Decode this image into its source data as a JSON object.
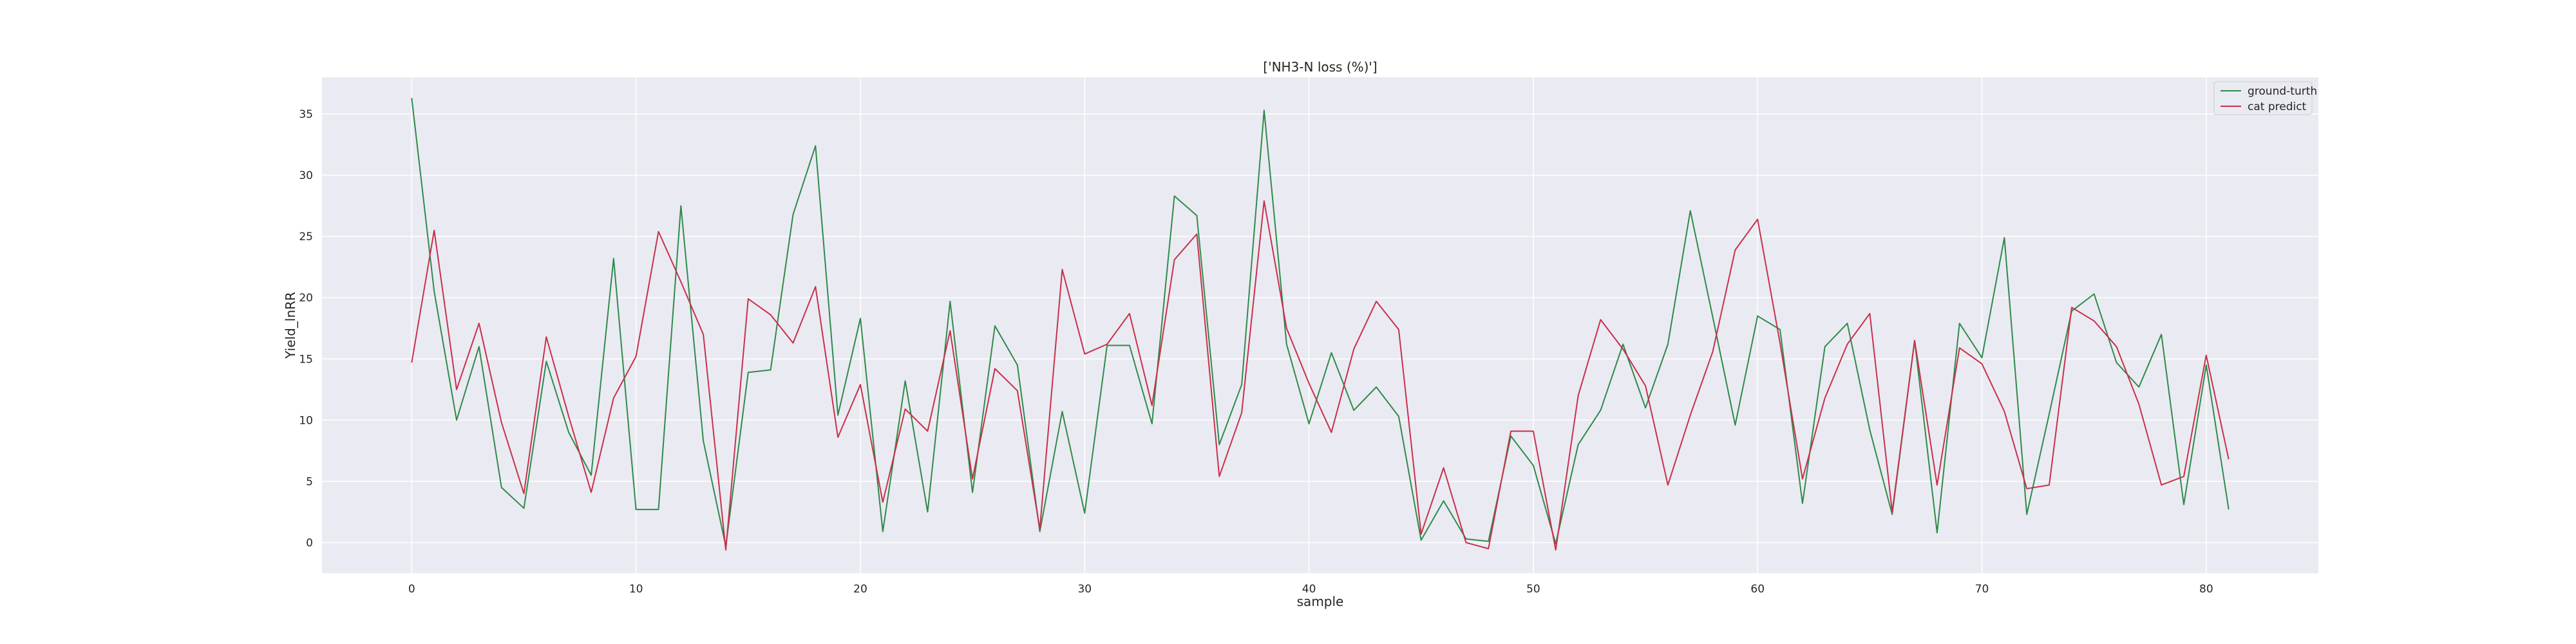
{
  "chart_data": {
    "type": "line",
    "title": "['NH3-N loss (%)']",
    "xlabel": "sample",
    "ylabel": "Yield_lnRR",
    "xlim": [
      -4,
      85
    ],
    "ylim": [
      -2.5,
      38
    ],
    "xticks": [
      0,
      10,
      20,
      30,
      40,
      50,
      60,
      70,
      80
    ],
    "yticks": [
      0,
      5,
      10,
      15,
      20,
      25,
      30,
      35
    ],
    "grid": true,
    "legend_position": "top-right",
    "x": [
      0,
      1,
      2,
      3,
      4,
      5,
      6,
      7,
      8,
      9,
      10,
      11,
      12,
      13,
      14,
      15,
      16,
      17,
      18,
      19,
      20,
      21,
      22,
      23,
      24,
      25,
      26,
      27,
      28,
      29,
      30,
      31,
      32,
      33,
      34,
      35,
      36,
      37,
      38,
      39,
      40,
      41,
      42,
      43,
      44,
      45,
      46,
      47,
      48,
      49,
      50,
      51,
      52,
      53,
      54,
      55,
      56,
      57,
      58,
      59,
      60,
      61,
      62,
      63,
      64,
      65,
      66,
      67,
      68,
      69,
      70,
      71,
      72,
      73,
      74,
      75,
      76,
      77,
      78,
      79,
      80,
      81
    ],
    "series": [
      {
        "name": "ground-turth",
        "color": "#2e8b4a",
        "values": [
          36.3,
          20.5,
          10.0,
          16.0,
          4.5,
          2.8,
          14.8,
          9.0,
          5.5,
          23.2,
          2.7,
          2.7,
          27.5,
          8.3,
          -0.3,
          13.9,
          14.1,
          26.8,
          32.4,
          10.4,
          18.3,
          0.9,
          13.2,
          2.5,
          19.7,
          4.1,
          17.7,
          14.5,
          0.9,
          10.7,
          2.4,
          16.1,
          16.1,
          9.7,
          28.3,
          26.7,
          8.0,
          12.9,
          35.3,
          16.2,
          9.7,
          15.5,
          10.8,
          12.7,
          10.3,
          0.2,
          3.4,
          0.3,
          0.1,
          8.7,
          6.3,
          -0.1,
          8.0,
          10.8,
          16.2,
          11.0,
          16.2,
          27.1,
          18.4,
          9.6,
          18.5,
          17.4,
          3.2,
          16.0,
          17.9,
          9.2,
          2.3,
          16.5,
          0.8,
          17.9,
          15.1,
          24.9,
          2.3,
          10.5,
          18.9,
          20.3,
          14.7,
          12.7,
          17.0,
          3.1,
          14.5,
          2.7
        ]
      },
      {
        "name": "cat predict",
        "color": "#c8304a",
        "values": [
          14.7,
          25.5,
          12.5,
          17.9,
          9.8,
          4.0,
          16.8,
          10.3,
          4.1,
          11.8,
          15.2,
          25.4,
          21.3,
          17.0,
          -0.6,
          19.9,
          18.6,
          16.3,
          20.9,
          8.6,
          12.9,
          3.3,
          10.9,
          9.1,
          17.3,
          5.2,
          14.2,
          12.4,
          1.1,
          22.3,
          15.4,
          16.2,
          18.7,
          11.2,
          23.1,
          25.2,
          5.4,
          10.6,
          27.9,
          17.5,
          13.0,
          9.0,
          15.8,
          19.7,
          17.4,
          0.7,
          6.1,
          0.0,
          -0.5,
          9.1,
          9.1,
          -0.6,
          12.0,
          18.2,
          15.8,
          12.8,
          4.7,
          10.4,
          15.6,
          23.9,
          26.4,
          16.3,
          5.2,
          11.8,
          16.2,
          18.7,
          2.5,
          16.5,
          4.7,
          15.9,
          14.6,
          10.7,
          4.4,
          4.7,
          19.2,
          18.1,
          16.0,
          11.3,
          4.7,
          5.4,
          15.3,
          6.8
        ]
      }
    ]
  }
}
